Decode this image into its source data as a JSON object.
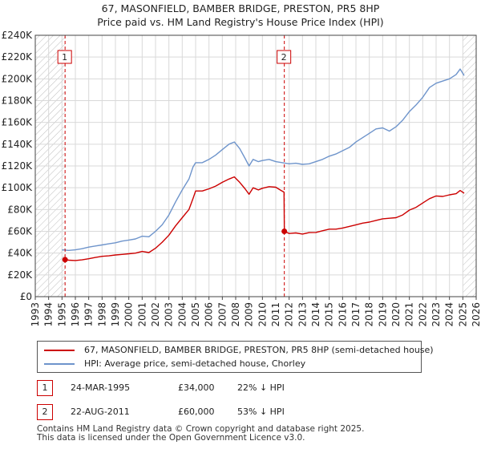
{
  "colors": {
    "price_line": "#cc0000",
    "hpi_line": "#6e94cb",
    "marker_border": "#cc0000",
    "grid": "#d9d9d9",
    "hatch": "#bdbdbd"
  },
  "chart_data": {
    "type": "line",
    "title_lines": [
      "67, MASONFIELD, BAMBER BRIDGE, PRESTON, PR5 8HP",
      "Price paid vs. HM Land Registry's House Price Index (HPI)"
    ],
    "xlim": [
      1993,
      2026
    ],
    "ylim": [
      0,
      240000
    ],
    "x_ticks": [
      1993,
      1994,
      1995,
      1996,
      1997,
      1998,
      1999,
      2000,
      2001,
      2002,
      2003,
      2004,
      2005,
      2006,
      2007,
      2008,
      2009,
      2010,
      2011,
      2012,
      2013,
      2014,
      2015,
      2016,
      2017,
      2018,
      2019,
      2020,
      2021,
      2022,
      2023,
      2024,
      2025,
      2026
    ],
    "y_ticks": [
      {
        "value": 0,
        "label": "£0"
      },
      {
        "value": 20000,
        "label": "£20K"
      },
      {
        "value": 40000,
        "label": "£40K"
      },
      {
        "value": 60000,
        "label": "£60K"
      },
      {
        "value": 80000,
        "label": "£80K"
      },
      {
        "value": 100000,
        "label": "£100K"
      },
      {
        "value": 120000,
        "label": "£120K"
      },
      {
        "value": 140000,
        "label": "£140K"
      },
      {
        "value": 160000,
        "label": "£160K"
      },
      {
        "value": 180000,
        "label": "£180K"
      },
      {
        "value": 200000,
        "label": "£200K"
      },
      {
        "value": 220000,
        "label": "£220K"
      },
      {
        "value": 240000,
        "label": "£240K"
      }
    ],
    "hatched_before": 1995.23,
    "hatched_after": 2025.0,
    "series": [
      {
        "name": "67, MASONFIELD, BAMBER BRIDGE, PRESTON, PR5 8HP (semi-detached house)",
        "color": "#cc0000",
        "points": [
          [
            1995.23,
            34000
          ],
          [
            1995.5,
            33500
          ],
          [
            1996,
            33200
          ],
          [
            1996.5,
            33800
          ],
          [
            1997,
            34800
          ],
          [
            1997.5,
            36000
          ],
          [
            1998,
            37000
          ],
          [
            1998.5,
            37500
          ],
          [
            1999,
            38300
          ],
          [
            1999.5,
            38800
          ],
          [
            2000,
            39400
          ],
          [
            2000.5,
            40000
          ],
          [
            2001,
            41500
          ],
          [
            2001.5,
            40500
          ],
          [
            2002,
            44500
          ],
          [
            2002.5,
            50000
          ],
          [
            2003,
            56500
          ],
          [
            2003.5,
            65000
          ],
          [
            2004,
            72500
          ],
          [
            2004.5,
            80000
          ],
          [
            2004.8,
            90000
          ],
          [
            2005,
            97000
          ],
          [
            2005.5,
            97000
          ],
          [
            2006,
            99000
          ],
          [
            2006.5,
            101500
          ],
          [
            2007,
            105000
          ],
          [
            2007.5,
            108000
          ],
          [
            2007.9,
            110000
          ],
          [
            2008.3,
            105000
          ],
          [
            2008.7,
            99000
          ],
          [
            2009,
            94000
          ],
          [
            2009.3,
            100000
          ],
          [
            2009.7,
            98000
          ],
          [
            2010,
            99500
          ],
          [
            2010.5,
            101000
          ],
          [
            2011,
            100500
          ],
          [
            2011.4,
            97500
          ],
          [
            2011.62,
            96000
          ],
          [
            2011.64,
            60000
          ],
          [
            2012,
            58000
          ],
          [
            2012.5,
            58500
          ],
          [
            2013,
            57500
          ],
          [
            2013.5,
            58800
          ],
          [
            2014,
            59000
          ],
          [
            2014.5,
            60500
          ],
          [
            2015,
            62000
          ],
          [
            2015.5,
            62000
          ],
          [
            2016,
            63000
          ],
          [
            2016.5,
            64500
          ],
          [
            2017,
            66000
          ],
          [
            2017.5,
            67500
          ],
          [
            2018,
            68500
          ],
          [
            2018.5,
            70000
          ],
          [
            2019,
            71500
          ],
          [
            2019.5,
            72000
          ],
          [
            2020,
            72500
          ],
          [
            2020.5,
            75000
          ],
          [
            2021,
            79500
          ],
          [
            2021.5,
            82000
          ],
          [
            2022,
            86000
          ],
          [
            2022.5,
            90000
          ],
          [
            2023,
            92500
          ],
          [
            2023.5,
            92000
          ],
          [
            2024,
            93500
          ],
          [
            2024.5,
            94500
          ],
          [
            2024.8,
            97500
          ],
          [
            2025.1,
            95000
          ]
        ]
      },
      {
        "name": "HPI: Average price, semi-detached house, Chorley",
        "color": "#6e94cb",
        "points": [
          [
            1995,
            43000
          ],
          [
            1995.5,
            42500
          ],
          [
            1996,
            43000
          ],
          [
            1996.5,
            44000
          ],
          [
            1997,
            45500
          ],
          [
            1997.5,
            46500
          ],
          [
            1998,
            47500
          ],
          [
            1998.5,
            48500
          ],
          [
            1999,
            49500
          ],
          [
            1999.5,
            51000
          ],
          [
            2000,
            52000
          ],
          [
            2000.5,
            53000
          ],
          [
            2001,
            55500
          ],
          [
            2001.5,
            55000
          ],
          [
            2002,
            60000
          ],
          [
            2002.5,
            66000
          ],
          [
            2003,
            75000
          ],
          [
            2003.5,
            87000
          ],
          [
            2004,
            98000
          ],
          [
            2004.5,
            108000
          ],
          [
            2004.8,
            119000
          ],
          [
            2005,
            123000
          ],
          [
            2005.5,
            123000
          ],
          [
            2006,
            126000
          ],
          [
            2006.5,
            130000
          ],
          [
            2007,
            135000
          ],
          [
            2007.5,
            140000
          ],
          [
            2007.9,
            142000
          ],
          [
            2008.3,
            136000
          ],
          [
            2008.7,
            127000
          ],
          [
            2009,
            120000
          ],
          [
            2009.3,
            126000
          ],
          [
            2009.7,
            124000
          ],
          [
            2010,
            125000
          ],
          [
            2010.5,
            126000
          ],
          [
            2011,
            124000
          ],
          [
            2011.5,
            123000
          ],
          [
            2012,
            122000
          ],
          [
            2012.5,
            122500
          ],
          [
            2013,
            121500
          ],
          [
            2013.5,
            122000
          ],
          [
            2014,
            124000
          ],
          [
            2014.5,
            126000
          ],
          [
            2015,
            129000
          ],
          [
            2015.5,
            131000
          ],
          [
            2016,
            134000
          ],
          [
            2016.5,
            137000
          ],
          [
            2017,
            142000
          ],
          [
            2017.5,
            146000
          ],
          [
            2018,
            150000
          ],
          [
            2018.5,
            154000
          ],
          [
            2019,
            155000
          ],
          [
            2019.5,
            152000
          ],
          [
            2020,
            156000
          ],
          [
            2020.5,
            162000
          ],
          [
            2021,
            170000
          ],
          [
            2021.5,
            176000
          ],
          [
            2022,
            183000
          ],
          [
            2022.5,
            192000
          ],
          [
            2023,
            196000
          ],
          [
            2023.5,
            198000
          ],
          [
            2024,
            200000
          ],
          [
            2024.5,
            204000
          ],
          [
            2024.8,
            209000
          ],
          [
            2025.1,
            203000
          ]
        ]
      }
    ],
    "markers": [
      {
        "label": "1",
        "x": 1995.23,
        "y": 34000
      },
      {
        "label": "2",
        "x": 2011.64,
        "y": 60000
      }
    ]
  },
  "legend": {
    "items": [
      {
        "label": "67, MASONFIELD, BAMBER BRIDGE, PRESTON, PR5 8HP (semi-detached house)",
        "color": "#cc0000"
      },
      {
        "label": "HPI: Average price, semi-detached house, Chorley",
        "color": "#6e94cb"
      }
    ]
  },
  "annotations": [
    {
      "label": "1",
      "date": "24-MAR-1995",
      "price": "£34,000",
      "hpi": "22% ↓ HPI"
    },
    {
      "label": "2",
      "date": "22-AUG-2011",
      "price": "£60,000",
      "hpi": "53% ↓ HPI"
    }
  ],
  "footer": {
    "line1": "Contains HM Land Registry data © Crown copyright and database right 2025.",
    "line2": "This data is licensed under the Open Government Licence v3.0."
  }
}
